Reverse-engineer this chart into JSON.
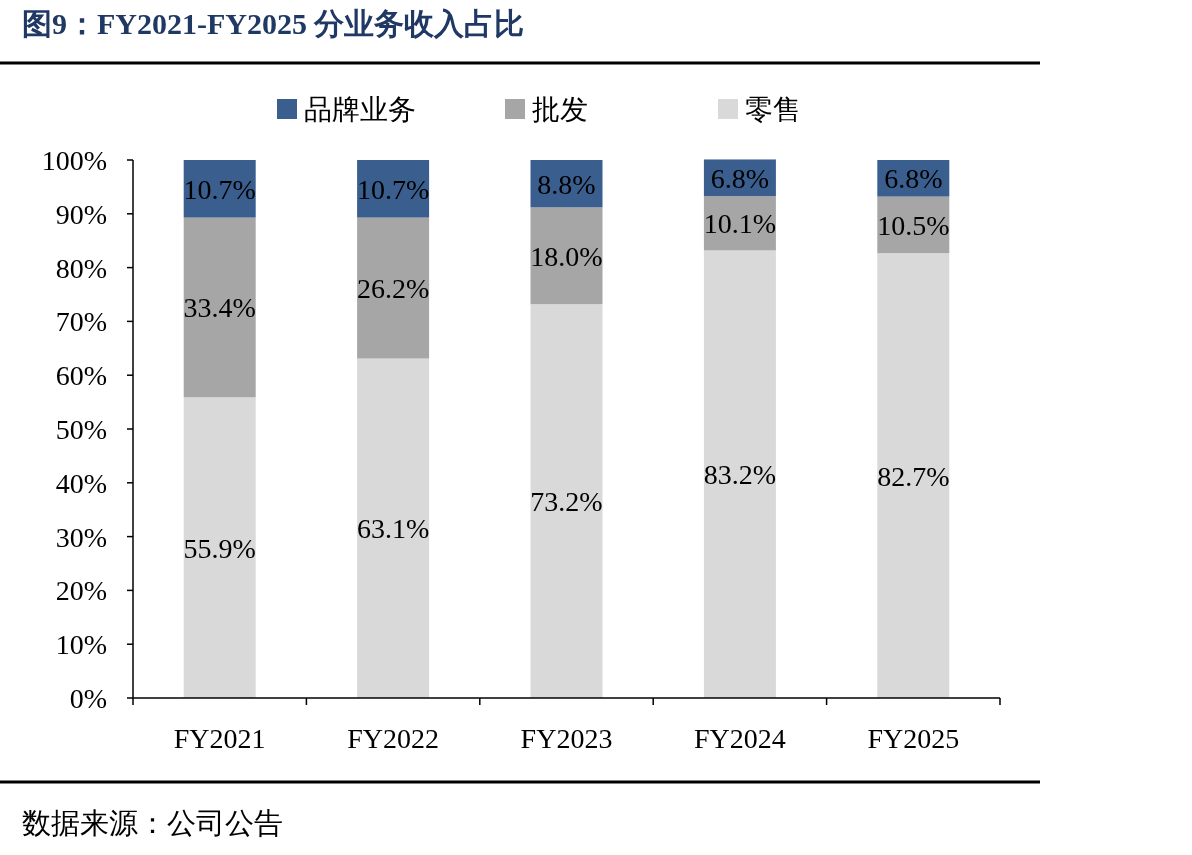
{
  "chart_data": {
    "type": "bar",
    "stacked": true,
    "title": "图9：FY2021-FY2025 分业务收入占比",
    "annotations": [
      "数据来源：公司公告"
    ],
    "categories": [
      "FY2021",
      "FY2022",
      "FY2023",
      "FY2024",
      "FY2025"
    ],
    "series": [
      {
        "name": "零售",
        "color": "#d9d9d9",
        "values": [
          55.9,
          63.1,
          73.2,
          83.2,
          82.7
        ],
        "value_labels": [
          "55.9%",
          "63.1%",
          "73.2%",
          "83.2%",
          "82.7%"
        ]
      },
      {
        "name": "批发",
        "color": "#a6a6a6",
        "values": [
          33.4,
          26.2,
          18.0,
          10.1,
          10.5
        ],
        "value_labels": [
          "33.4%",
          "26.2%",
          "18.0%",
          "10.1%",
          "10.5%"
        ]
      },
      {
        "name": "品牌业务",
        "color": "#3a5f8f",
        "values": [
          10.7,
          10.7,
          8.8,
          6.8,
          6.8
        ],
        "value_labels": [
          "10.7%",
          "10.7%",
          "8.8%",
          "6.8%",
          "6.8%"
        ]
      }
    ],
    "ylim": [
      0,
      100
    ],
    "yticks": [
      {
        "value": 0,
        "label": "0%"
      },
      {
        "value": 10,
        "label": "10%"
      },
      {
        "value": 20,
        "label": "20%"
      },
      {
        "value": 30,
        "label": "30%"
      },
      {
        "value": 40,
        "label": "40%"
      },
      {
        "value": 50,
        "label": "50%"
      },
      {
        "value": 60,
        "label": "60%"
      },
      {
        "value": 70,
        "label": "70%"
      },
      {
        "value": 80,
        "label": "80%"
      },
      {
        "value": 90,
        "label": "90%"
      },
      {
        "value": 100,
        "label": "100%"
      }
    ],
    "grid": false,
    "legend": "top"
  }
}
